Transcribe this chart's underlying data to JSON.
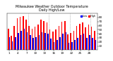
{
  "title": "Milwaukee Weather Outdoor Temperature",
  "subtitle": "Daily High/Low",
  "highs": [
    52,
    35,
    60,
    78,
    82,
    83,
    75,
    60,
    52,
    58,
    62,
    75,
    72,
    68,
    50,
    45,
    50,
    60,
    70,
    72,
    38,
    42,
    48,
    60,
    65,
    68,
    55,
    62,
    58,
    48
  ],
  "lows": [
    32,
    22,
    32,
    42,
    48,
    52,
    44,
    36,
    30,
    32,
    36,
    44,
    42,
    40,
    28,
    20,
    24,
    32,
    40,
    44,
    18,
    20,
    24,
    30,
    36,
    40,
    30,
    36,
    30,
    24
  ],
  "high_color": "#ff0000",
  "low_color": "#0000ff",
  "bg_color": "#ffffff",
  "ylim": [
    0,
    90
  ],
  "yticks": [
    10,
    20,
    30,
    40,
    50,
    60,
    70,
    80
  ],
  "week_separators": [
    6.5,
    13.5,
    20.5,
    27.5
  ],
  "bar_width": 0.38,
  "legend_high_label": "High",
  "legend_low_label": "Low",
  "n_days": 30
}
